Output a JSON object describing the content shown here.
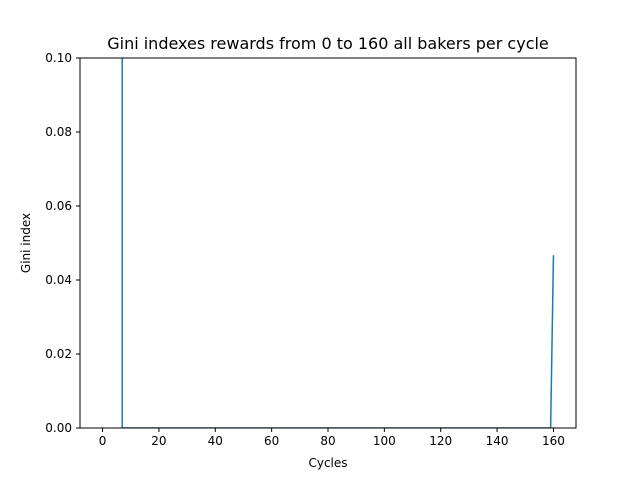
{
  "chart_data": {
    "type": "line",
    "title": "Gini indexes rewards from 0 to 160 all bakers per cycle",
    "xlabel": "Cycles",
    "ylabel": "Gini index",
    "xlim": [
      -8,
      168
    ],
    "ylim": [
      0,
      0.1
    ],
    "x_ticks": [
      0,
      20,
      40,
      60,
      80,
      100,
      120,
      140,
      160
    ],
    "y_ticks": [
      0.0,
      0.02,
      0.04,
      0.06,
      0.08,
      0.1
    ],
    "y_tick_labels": [
      "0.00",
      "0.02",
      "0.04",
      "0.06",
      "0.08",
      "0.10"
    ],
    "grid": false,
    "series": [
      {
        "color": "#1f77b4",
        "x": [
          7,
          7,
          159,
          160
        ],
        "y": [
          0.1,
          0.0,
          0.0,
          0.0467
        ]
      }
    ]
  }
}
